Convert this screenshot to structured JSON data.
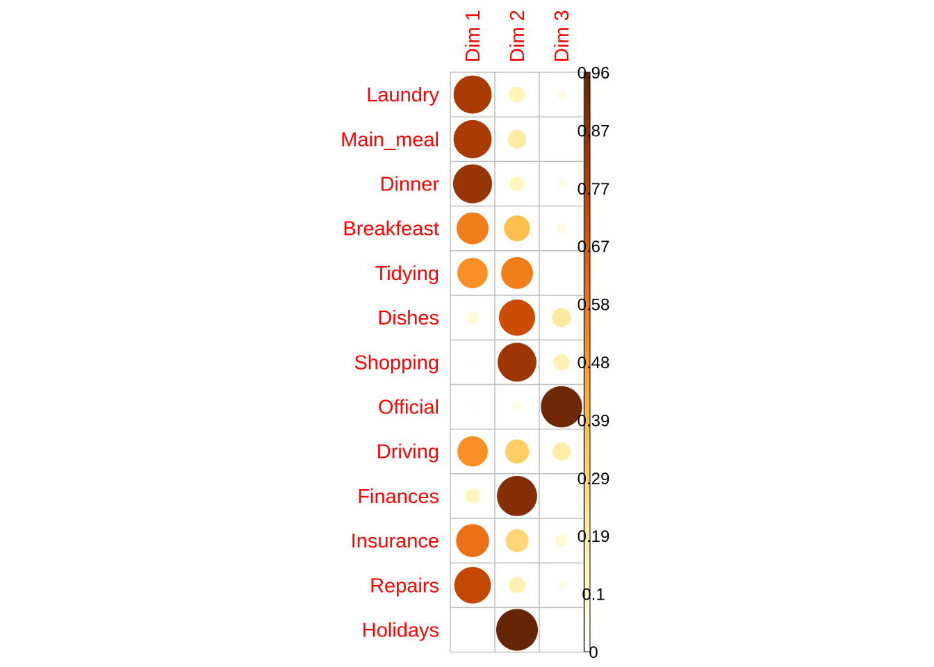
{
  "chart_data": {
    "type": "heatmap",
    "title": "",
    "columns": [
      "Dim 1",
      "Dim 2",
      "Dim 3"
    ],
    "rows": [
      "Laundry",
      "Main_meal",
      "Dinner",
      "Breakfeast",
      "Tidying",
      "Dishes",
      "Shopping",
      "Official",
      "Driving",
      "Finances",
      "Insurance",
      "Repairs",
      "Holidays"
    ],
    "values": [
      [
        0.8,
        0.14,
        0.05
      ],
      [
        0.8,
        0.19,
        0.01
      ],
      [
        0.84,
        0.12,
        0.04
      ],
      [
        0.56,
        0.37,
        0.06
      ],
      [
        0.51,
        0.56,
        0.01
      ],
      [
        0.08,
        0.72,
        0.2
      ],
      [
        0.02,
        0.83,
        0.15
      ],
      [
        0.02,
        0.04,
        0.94
      ],
      [
        0.51,
        0.32,
        0.18
      ],
      [
        0.12,
        0.89,
        0.0
      ],
      [
        0.6,
        0.29,
        0.08
      ],
      [
        0.74,
        0.15,
        0.04
      ],
      [
        0.01,
        0.96,
        0.0
      ]
    ],
    "color_scale": {
      "min": 0,
      "max": 0.96,
      "stops": [
        "#ffffff",
        "#fff7bc",
        "#fee391",
        "#fec44f",
        "#fe9929",
        "#ec7014",
        "#cc4c02",
        "#993404",
        "#662506"
      ],
      "tick_labels": [
        "0",
        "0.1",
        "0.19",
        "0.29",
        "0.39",
        "0.48",
        "0.58",
        "0.67",
        "0.77",
        "0.87",
        "0.96"
      ]
    },
    "legend_position": "right",
    "grid": true
  }
}
